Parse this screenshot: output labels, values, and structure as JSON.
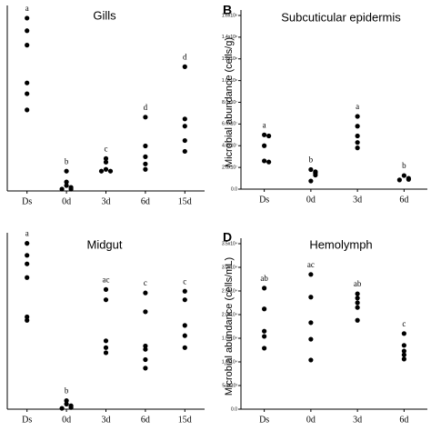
{
  "chart_data": [
    {
      "type": "dot",
      "title": "Gills",
      "color": "#000000",
      "categories": [
        "Ds",
        "0d",
        "3d",
        "6d",
        "15d"
      ],
      "values": [
        [
          96,
          89,
          81,
          60,
          54,
          45
        ],
        [
          11,
          5,
          3,
          2,
          1,
          1
        ],
        [
          18,
          16,
          12,
          11,
          11
        ],
        [
          41,
          25,
          19,
          15,
          12
        ],
        [
          69,
          40,
          36,
          28,
          22
        ]
      ],
      "letters": [
        "a",
        "b",
        "c",
        "d",
        "d"
      ],
      "ylim": [
        0,
        100
      ]
    },
    {
      "type": "dot",
      "panel_label": "B",
      "title": "Subcuticular epidermis",
      "ylabel": "Microbial abundance (cells/g)",
      "color": "#000000",
      "categories": [
        "Ds",
        "0d",
        "3d",
        "6d"
      ],
      "values": [
        [
          50000000,
          49000000,
          40000000,
          26000000,
          25000000
        ],
        [
          18000000,
          16000000,
          15000000,
          13000000,
          7500000
        ],
        [
          67000000,
          58000000,
          49000000,
          43000000,
          38000000
        ],
        [
          12500000,
          10000000,
          9000000,
          8500000
        ]
      ],
      "letters": [
        "a",
        "b",
        "a",
        "b"
      ],
      "ylim": [
        0,
        160000000
      ],
      "yticks": [
        {
          "value": 0,
          "label": "0.0"
        },
        {
          "value": 20000000,
          "label": "2.0x10⁷"
        },
        {
          "value": 40000000,
          "label": "4.0x10⁷"
        },
        {
          "value": 60000000,
          "label": "6.0x10⁷"
        },
        {
          "value": 80000000,
          "label": "8.0x10⁷"
        },
        {
          "value": 100000000,
          "label": "1.0x10⁸"
        },
        {
          "value": 120000000,
          "label": "1.2x10⁸"
        },
        {
          "value": 140000000,
          "label": "1.4x10⁸"
        },
        {
          "value": 160000000,
          "label": "1.6x10⁸"
        }
      ]
    },
    {
      "type": "dot",
      "title": "Midgut",
      "color": "#000000",
      "categories": [
        "Ds",
        "0d",
        "3d",
        "6d",
        "15d"
      ],
      "values": [
        [
          97,
          90,
          85,
          77,
          54,
          52
        ],
        [
          5,
          3,
          2,
          1,
          0.5
        ],
        [
          70,
          64,
          40,
          36,
          33
        ],
        [
          68,
          57,
          37,
          35,
          29,
          24
        ],
        [
          69,
          64,
          49,
          43,
          36
        ]
      ],
      "letters": [
        "a",
        "b",
        "ac",
        "c",
        "c"
      ],
      "ylim": [
        0,
        100
      ]
    },
    {
      "type": "dot",
      "panel_label": "D",
      "title": "Hemolymph",
      "ylabel": "Microbial abundance (cells/mL)",
      "color": "#000000",
      "categories": [
        "Ds",
        "0d",
        "3d",
        "6d"
      ],
      "values": [
        [
          25600,
          21200,
          16500,
          15400,
          12900
        ],
        [
          28500,
          23700,
          18300,
          14800,
          10400
        ],
        [
          24400,
          23500,
          22500,
          21500,
          18800
        ],
        [
          16000,
          13500,
          12300,
          11500,
          10600
        ]
      ],
      "letters": [
        "ab",
        "ac",
        "ab",
        "c"
      ],
      "ylim": [
        0,
        35000
      ],
      "yticks": [
        {
          "value": 0,
          "label": "0.0"
        },
        {
          "value": 5000,
          "label": "5.0x10³"
        },
        {
          "value": 10000,
          "label": "1.0x10⁴"
        },
        {
          "value": 15000,
          "label": "1.5x10⁴"
        },
        {
          "value": 20000,
          "label": "2.0x10⁴"
        },
        {
          "value": 25000,
          "label": "2.5x10⁴"
        },
        {
          "value": 30000,
          "label": "3.0x10⁴"
        },
        {
          "value": 35000,
          "label": "3.5x10⁴"
        }
      ]
    }
  ]
}
